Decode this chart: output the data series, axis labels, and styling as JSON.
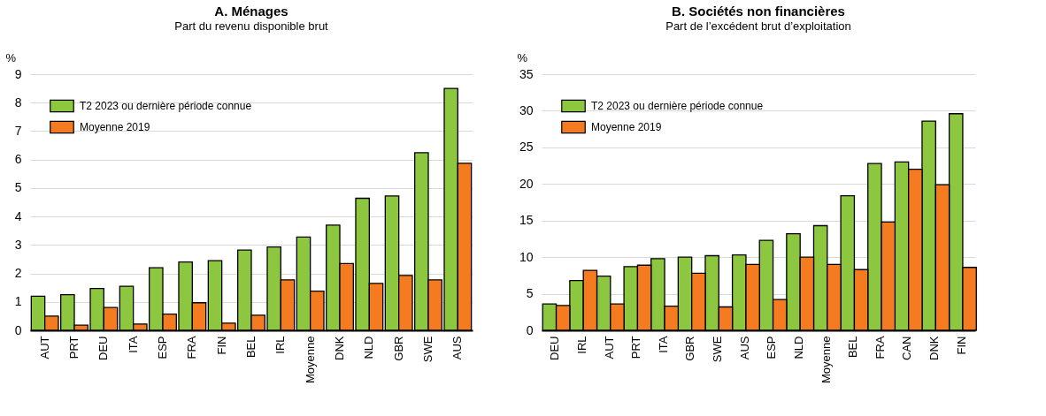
{
  "chart_data": [
    {
      "type": "bar",
      "title": "A. Ménages",
      "subtitle": "Part du revenu disponible brut",
      "ylabel": "%",
      "categories": [
        "AUT",
        "PRT",
        "DEU",
        "ITA",
        "ESP",
        "FRA",
        "FIN",
        "BEL",
        "IRL",
        "Moyenne",
        "DNK",
        "NLD",
        "GBR",
        "SWE",
        "AUS"
      ],
      "series": [
        {
          "name": "T2 2023 ou dernière période connue",
          "color": "#8dc63f",
          "values": [
            1.2,
            1.25,
            1.47,
            1.55,
            2.2,
            2.4,
            2.45,
            2.82,
            2.93,
            3.28,
            3.7,
            4.64,
            4.72,
            6.24,
            8.5
          ]
        },
        {
          "name": "Moyenne 2019",
          "color": "#f47b20",
          "values": [
            0.5,
            0.18,
            0.8,
            0.22,
            0.57,
            0.97,
            0.25,
            0.53,
            1.77,
            1.38,
            2.35,
            1.65,
            1.93,
            1.77,
            5.87
          ]
        }
      ],
      "ylim": [
        0,
        9
      ],
      "yticks": [
        0,
        1,
        2,
        3,
        4,
        5,
        6,
        7,
        8,
        9
      ],
      "grid": "y",
      "legend": "top left"
    },
    {
      "type": "bar",
      "title": "B. Sociétés non financières",
      "subtitle": "Part de l’excédent brut d’exploitation",
      "ylabel": "%",
      "categories": [
        "DEU",
        "IRL",
        "AUT",
        "PRT",
        "ITA",
        "GBR",
        "SWE",
        "AUS",
        "ESP",
        "NLD",
        "Moyenne",
        "BEL",
        "FRA",
        "CAN",
        "DNK",
        "FIN"
      ],
      "series": [
        {
          "name": "T2 2023 ou dernière période connue",
          "color": "#8dc63f",
          "values": [
            3.6,
            6.8,
            7.4,
            8.7,
            9.8,
            10.0,
            10.2,
            10.3,
            12.3,
            13.2,
            14.3,
            18.4,
            22.8,
            23.0,
            28.6,
            29.6
          ]
        },
        {
          "name": "Moyenne 2019",
          "color": "#f47b20",
          "values": [
            3.4,
            8.2,
            3.6,
            8.9,
            3.3,
            7.8,
            3.2,
            9.0,
            4.2,
            10.0,
            9.0,
            8.3,
            14.8,
            22.0,
            19.9,
            8.6
          ]
        }
      ],
      "ylim": [
        0,
        35
      ],
      "yticks": [
        0,
        5,
        10,
        15,
        20,
        25,
        30,
        35
      ],
      "grid": "y",
      "legend": "top left"
    }
  ]
}
